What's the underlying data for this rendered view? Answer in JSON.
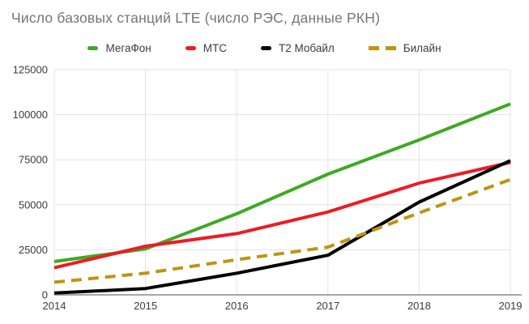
{
  "title": "Число базовых станций LTE (число РЭС, данные РКН)",
  "colors": {
    "background": "#ffffff",
    "title_text": "#757575",
    "tick_text": "#3b3b3b",
    "gridline": "#e3e3e3",
    "axis_line": "#a6a6a6"
  },
  "chart_data": {
    "type": "line",
    "title": "Число базовых станций LTE (число РЭС, данные РКН)",
    "x": [
      "2014",
      "2015",
      "2016",
      "2017",
      "2018",
      "2019"
    ],
    "series": [
      {
        "id": "megafon",
        "name": "МегаФон",
        "color": "#3caa21",
        "dash": false,
        "values": [
          18500,
          25500,
          45000,
          67000,
          86000,
          106000
        ]
      },
      {
        "id": "mts",
        "name": "МТС",
        "color": "#ed1b23",
        "dash": false,
        "values": [
          15000,
          27000,
          34000,
          46000,
          62000,
          73500
        ]
      },
      {
        "id": "t2",
        "name": "Т2 Мобайл",
        "color": "#000000",
        "dash": false,
        "values": [
          1000,
          3500,
          12000,
          22000,
          51500,
          74500
        ]
      },
      {
        "id": "beeline",
        "name": "Билайн",
        "color": "#bf9410",
        "dash": true,
        "values": [
          7000,
          12000,
          19500,
          26500,
          45500,
          64000
        ]
      }
    ],
    "xlabel": "",
    "ylabel": "",
    "ylim": [
      0,
      125000
    ],
    "yticks": [
      0,
      25000,
      50000,
      75000,
      100000,
      125000
    ],
    "grid": true,
    "legend_position": "top"
  }
}
